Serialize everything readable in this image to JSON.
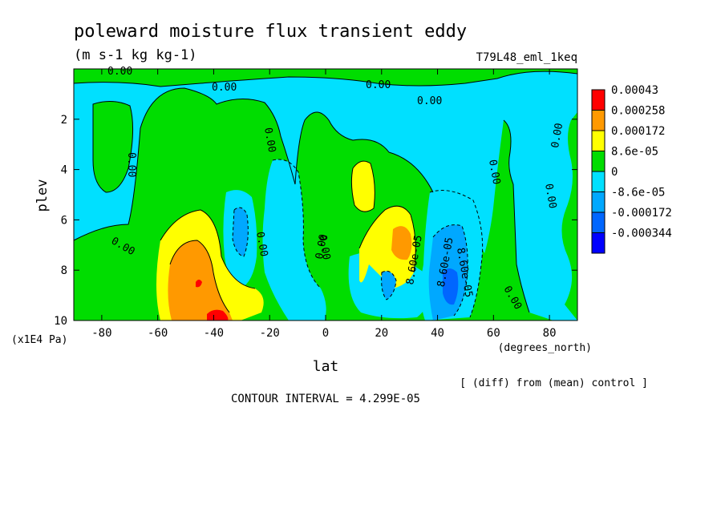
{
  "chart_data": {
    "type": "heatmap",
    "title": "poleward moisture flux transient eddy",
    "subtitle": "(m s-1 kg kg-1)",
    "run_label": "T79L48_eml_1keq",
    "xlabel": "lat",
    "x_units": "(degrees_north)",
    "ylabel": "plev",
    "y_units": "(x1E4 Pa)",
    "xlim": [
      -90,
      90
    ],
    "ylim": [
      10,
      0
    ],
    "x_ticks": [
      -80,
      -60,
      -40,
      -20,
      0,
      20,
      40,
      60,
      80
    ],
    "y_ticks": [
      2,
      4,
      6,
      8,
      10
    ],
    "x_tick_labels": [
      "-80",
      "-60",
      "-40",
      "-20",
      "0",
      "20",
      "40",
      "60",
      "80"
    ],
    "y_tick_labels": [
      "2",
      "4",
      "6",
      "8",
      "10"
    ],
    "colorbar": [
      {
        "label": "0.00043",
        "color": "#ff0000"
      },
      {
        "label": "0.000258",
        "color": "#ff9900"
      },
      {
        "label": "0.000172",
        "color": "#ffff00"
      },
      {
        "label": "8.6e-05",
        "color": "#00dd00"
      },
      {
        "label": "0",
        "color": "#00e0ff"
      },
      {
        "label": "-8.6e-05",
        "color": "#00a8ff"
      },
      {
        "label": "-0.000172",
        "color": "#0066ff"
      },
      {
        "label": "-0.000344",
        "color": "#0000ff"
      }
    ],
    "contour_labels": [
      "0.00",
      "0.00",
      "0.00",
      "0.00",
      "0.00",
      "0.00",
      "0.00",
      "0.00",
      "0.00",
      "0.00",
      "0.00",
      "0.00",
      "0.00",
      "0.00",
      "8.60e-05",
      "8.60e-05",
      "8.60e-05"
    ],
    "note": "[ (diff) from (mean) control ]",
    "contour_interval": "CONTOUR INTERVAL = 4.299E-05"
  }
}
